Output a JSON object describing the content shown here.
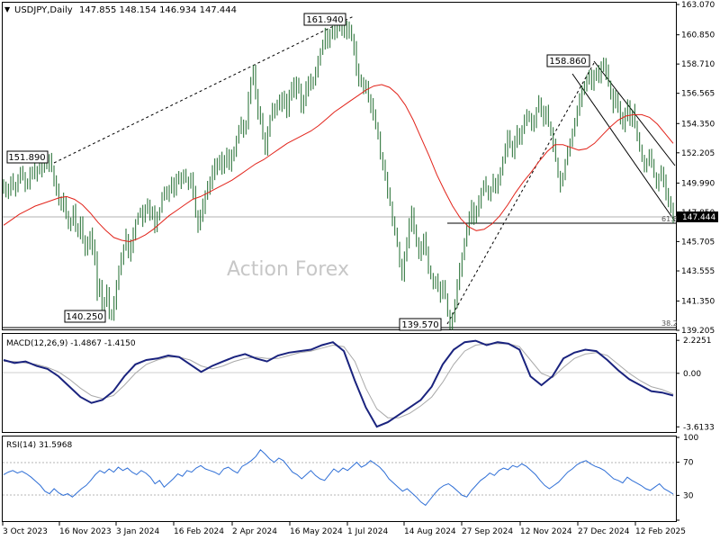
{
  "chart_data": {
    "type": "candlestick",
    "title": "USDJPY,Daily",
    "ohlc_header": "147.855 148.154 146.934 147.444",
    "watermark": "Action Forex",
    "x_tick_labels": [
      "3 Oct 2023",
      "16 Nov 2023",
      "3 Jan 2024",
      "16 Feb 2024",
      "2 Apr 2024",
      "16 May 2024",
      "1 Jul 2024",
      "14 Aug 2024",
      "27 Sep 2024",
      "12 Nov 2024",
      "27 Dec 2024",
      "12 Feb 2025"
    ],
    "price_panel": {
      "y_ticks": [
        "163.070",
        "160.850",
        "158.710",
        "156.565",
        "154.350",
        "152.205",
        "149.990",
        "147.850",
        "145.705",
        "143.555",
        "141.350",
        "139.205"
      ],
      "ylim": [
        139.205,
        163.07
      ],
      "current_price_label": "147.444",
      "peak_labels": [
        {
          "text": "161.940",
          "value": 161.94
        },
        {
          "text": "151.890",
          "value": 151.89
        },
        {
          "text": "140.250",
          "value": 140.25
        },
        {
          "text": "139.570",
          "value": 139.57
        },
        {
          "text": "158.860",
          "value": 158.86
        }
      ],
      "fib_labels": [
        "61.8",
        "38.2"
      ],
      "series": [
        {
          "name": "price",
          "closes": [
            149.9,
            149.2,
            149.6,
            150.3,
            149.8,
            149.5,
            150.2,
            150.8,
            150.4,
            149.7,
            150.1,
            150.6,
            151.0,
            150.5,
            150.9,
            151.4,
            151.0,
            151.6,
            151.3,
            151.89,
            151.1,
            150.3,
            149.6,
            148.6,
            148.3,
            148.8,
            147.6,
            146.8,
            147.3,
            147.9,
            146.7,
            146.4,
            147.2,
            145.9,
            144.9,
            145.6,
            146.2,
            145.3,
            144.5,
            141.8,
            142.6,
            140.9,
            141.4,
            142.1,
            140.6,
            140.25,
            141.3,
            142.7,
            143.6,
            144.5,
            145.3,
            146.1,
            144.7,
            145.4,
            146.3,
            147.1,
            147.6,
            148.0,
            147.3,
            147.9,
            148.5,
            147.6,
            148.1,
            146.6,
            147.4,
            148.0,
            148.9,
            149.4,
            149.1,
            149.7,
            150.1,
            149.5,
            150.2,
            150.6,
            150.1,
            150.8,
            150.3,
            149.9,
            150.4,
            149.4,
            147.8,
            146.9,
            147.6,
            148.3,
            149.1,
            149.6,
            150.1,
            150.8,
            151.4,
            151.1,
            151.7,
            151.0,
            151.6,
            152.1,
            151.3,
            151.9,
            152.5,
            153.1,
            153.8,
            154.4,
            153.7,
            154.3,
            156.1,
            157.6,
            158.4,
            156.6,
            155.2,
            154.6,
            153.4,
            152.4,
            153.6,
            154.8,
            155.5,
            155.1,
            155.8,
            156.3,
            155.6,
            156.2,
            155.0,
            156.5,
            157.2,
            156.4,
            157.4,
            156.8,
            155.5,
            156.2,
            156.9,
            157.5,
            157.1,
            157.6,
            158.3,
            158.9,
            159.6,
            160.2,
            160.8,
            160.3,
            161.0,
            161.3,
            160.9,
            161.5,
            161.94,
            161.1,
            161.5,
            160.9,
            161.4,
            160.6,
            159.9,
            158.4,
            157.6,
            157.2,
            156.8,
            157.3,
            156.2,
            155.7,
            155.0,
            154.1,
            153.4,
            152.0,
            151.3,
            150.4,
            149.3,
            148.5,
            147.2,
            146.3,
            145.5,
            144.1,
            143.3,
            144.4,
            145.8,
            146.9,
            147.8,
            146.8,
            145.6,
            144.6,
            145.3,
            146.0,
            144.9,
            143.8,
            143.2,
            142.5,
            143.0,
            142.4,
            141.8,
            142.7,
            141.7,
            140.5,
            139.57,
            140.3,
            141.2,
            142.6,
            143.6,
            144.6,
            145.6,
            146.5,
            147.5,
            148.4,
            147.3,
            148.0,
            148.6,
            149.4,
            150.0,
            149.5,
            149.0,
            149.6,
            150.2,
            149.6,
            150.3,
            151.0,
            151.6,
            152.4,
            153.3,
            152.8,
            152.2,
            152.9,
            153.7,
            153.3,
            154.0,
            154.6,
            155.1,
            154.8,
            154.0,
            154.6,
            155.4,
            156.0,
            155.4,
            154.6,
            155.2,
            154.3,
            153.6,
            152.8,
            151.7,
            150.6,
            149.9,
            150.6,
            151.5,
            152.3,
            153.0,
            153.8,
            154.6,
            155.2,
            156.0,
            156.6,
            157.0,
            157.7,
            157.9,
            157.3,
            157.7,
            158.2,
            157.6,
            158.4,
            158.86,
            158.1,
            157.2,
            156.4,
            155.7,
            156.3,
            155.6,
            154.8,
            154.2,
            155.0,
            155.6,
            154.6,
            155.2,
            154.2,
            153.4,
            152.5,
            151.8,
            151.0,
            151.6,
            152.2,
            151.3,
            150.6,
            149.8,
            150.5,
            151.0,
            150.1,
            149.3,
            148.6,
            148.0,
            147.444
          ],
          "ma_closes": [
            146.9,
            147.3,
            147.7,
            148.0,
            148.3,
            148.5,
            148.7,
            148.9,
            149.0,
            148.8,
            148.4,
            147.8,
            147.1,
            146.5,
            146.0,
            145.8,
            145.7,
            145.9,
            146.2,
            146.6,
            147.1,
            147.6,
            148.0,
            148.4,
            148.8,
            149.0,
            149.3,
            149.6,
            149.9,
            150.2,
            150.6,
            151.0,
            151.4,
            151.7,
            152.1,
            152.5,
            152.9,
            153.2,
            153.5,
            153.8,
            154.2,
            154.7,
            155.2,
            155.6,
            156.0,
            156.4,
            156.8,
            157.1,
            157.2,
            157.0,
            156.5,
            155.7,
            154.6,
            153.3,
            152.0,
            150.6,
            149.4,
            148.3,
            147.4,
            146.8,
            146.5,
            146.6,
            147.0,
            147.6,
            148.4,
            149.3,
            150.1,
            150.8,
            151.6,
            152.3,
            152.8,
            152.8,
            152.6,
            152.4,
            152.5,
            152.9,
            153.5,
            154.1,
            154.6,
            154.9,
            155.0,
            155.0,
            154.8,
            154.3,
            153.6,
            152.9
          ]
        }
      ]
    },
    "macd_panel": {
      "label": "MACD(12,26,9) -1.4867 -1.4150",
      "y_ticks": [
        "2.2251",
        "0.00",
        "-3.6133"
      ],
      "ylim": [
        -3.9,
        2.6
      ],
      "series": [
        {
          "name": "MACD",
          "values": [
            0.9,
            0.7,
            0.8,
            0.5,
            0.3,
            -0.2,
            -0.9,
            -1.6,
            -2.0,
            -1.8,
            -1.2,
            -0.2,
            0.6,
            0.9,
            1.0,
            1.2,
            1.1,
            0.6,
            0.1,
            0.5,
            0.8,
            1.1,
            1.3,
            1.0,
            0.8,
            1.2,
            1.4,
            1.5,
            1.6,
            1.9,
            2.1,
            1.5,
            -0.5,
            -2.3,
            -3.6,
            -3.3,
            -2.8,
            -2.3,
            -1.8,
            -0.9,
            0.6,
            1.6,
            2.1,
            2.2,
            1.9,
            2.1,
            2.0,
            1.6,
            -0.2,
            -0.8,
            -0.2,
            1.0,
            1.4,
            1.6,
            1.5,
            0.9,
            0.2,
            -0.4,
            -0.8,
            -1.2,
            -1.3,
            -1.5
          ]
        },
        {
          "name": "Signal",
          "values": [
            0.8,
            0.8,
            0.7,
            0.6,
            0.4,
            0.1,
            -0.4,
            -1.0,
            -1.5,
            -1.7,
            -1.5,
            -0.8,
            0.0,
            0.6,
            0.9,
            1.1,
            1.1,
            0.9,
            0.5,
            0.3,
            0.5,
            0.8,
            1.0,
            1.1,
            1.0,
            1.0,
            1.2,
            1.4,
            1.5,
            1.7,
            1.9,
            1.8,
            0.8,
            -1.0,
            -2.4,
            -3.0,
            -3.0,
            -2.7,
            -2.2,
            -1.6,
            -0.6,
            0.6,
            1.5,
            1.9,
            2.0,
            2.0,
            2.0,
            1.8,
            0.9,
            0.0,
            -0.3,
            0.4,
            1.0,
            1.3,
            1.4,
            1.2,
            0.6,
            0.0,
            -0.5,
            -0.9,
            -1.1,
            -1.4
          ]
        }
      ]
    },
    "rsi_panel": {
      "label": "RSI(14) 31.5968",
      "y_ticks": [
        "100",
        "70",
        "30",
        "0"
      ],
      "ylim": [
        0,
        100
      ],
      "values": [
        55,
        58,
        60,
        57,
        59,
        56,
        52,
        47,
        42,
        35,
        32,
        38,
        33,
        30,
        32,
        28,
        33,
        38,
        42,
        48,
        55,
        60,
        57,
        62,
        58,
        64,
        60,
        63,
        58,
        55,
        60,
        57,
        52,
        44,
        48,
        40,
        45,
        50,
        56,
        53,
        60,
        58,
        63,
        66,
        62,
        60,
        58,
        55,
        62,
        64,
        60,
        57,
        65,
        68,
        72,
        77,
        85,
        80,
        74,
        70,
        75,
        72,
        65,
        58,
        55,
        50,
        55,
        60,
        54,
        50,
        48,
        55,
        62,
        58,
        63,
        60,
        65,
        70,
        64,
        67,
        72,
        68,
        64,
        58,
        50,
        45,
        40,
        35,
        38,
        33,
        28,
        22,
        18,
        25,
        32,
        38,
        42,
        44,
        40,
        35,
        30,
        28,
        36,
        42,
        48,
        52,
        57,
        54,
        60,
        63,
        61,
        66,
        64,
        68,
        65,
        60,
        55,
        48,
        42,
        38,
        42,
        46,
        52,
        58,
        62,
        67,
        70,
        72,
        68,
        65,
        63,
        60,
        55,
        50,
        48,
        45,
        52,
        48,
        45,
        42,
        38,
        36,
        40,
        44,
        38,
        35,
        31.6
      ]
    }
  }
}
